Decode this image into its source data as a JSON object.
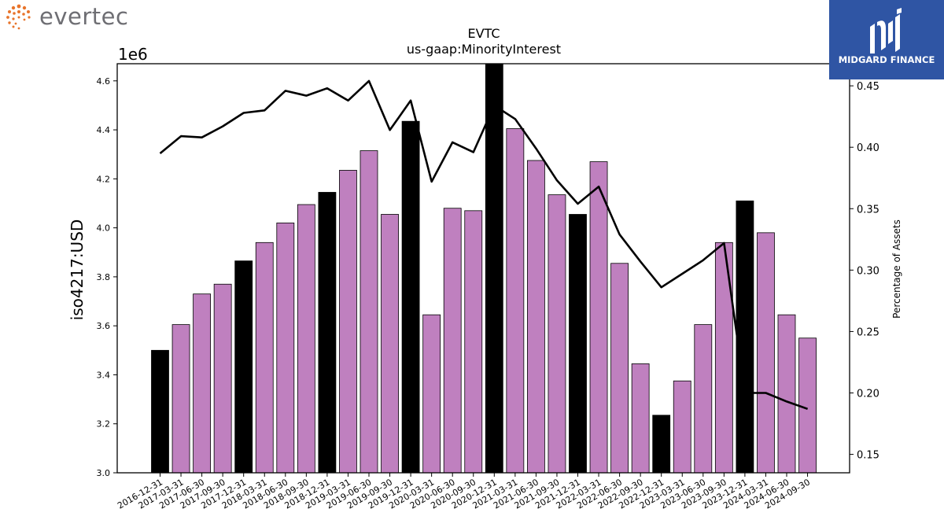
{
  "logos": {
    "left_text": "evertec",
    "right_text": "MIDGARD FINANCE",
    "accent_orange": "#e8742b",
    "brand_blue": "#2f55a4"
  },
  "chart_data": {
    "type": "bar",
    "title": "EVTC",
    "subtitle": "us-gaap:MinorityInterest",
    "ylabel": "iso4217:USD",
    "y_offset_label": "1e6",
    "y2label": "Percentage of Assets",
    "ylim": [
      3.0,
      4.67
    ],
    "y2lim": [
      0.135,
      0.468
    ],
    "grid": false,
    "colors": {
      "quarterly": "#bf80bf",
      "annual": "#000000",
      "line": "#000000"
    },
    "yticks": [
      "3.0",
      "3.2",
      "3.4",
      "3.6",
      "3.8",
      "4.0",
      "4.2",
      "4.4",
      "4.6"
    ],
    "y2ticks": [
      "0.15",
      "0.20",
      "0.25",
      "0.30",
      "0.35",
      "0.40",
      "0.45"
    ],
    "categories": [
      "2016-12-31",
      "2017-03-31",
      "2017-06-30",
      "2017-09-30",
      "2017-12-31",
      "2018-03-31",
      "2018-06-30",
      "2018-09-30",
      "2018-12-31",
      "2019-03-31",
      "2019-06-30",
      "2019-09-30",
      "2019-12-31",
      "2020-03-31",
      "2020-06-30",
      "2020-09-30",
      "2020-12-31",
      "2021-03-31",
      "2021-06-30",
      "2021-09-30",
      "2021-12-31",
      "2022-03-31",
      "2022-06-30",
      "2022-09-30",
      "2022-12-31",
      "2023-03-31",
      "2023-06-30",
      "2023-09-30",
      "2023-12-31",
      "2024-03-31",
      "2024-06-30",
      "2024-09-30"
    ],
    "values": [
      3.5,
      3.605,
      3.73,
      3.77,
      3.865,
      3.94,
      4.02,
      4.095,
      4.145,
      4.235,
      4.315,
      4.055,
      4.435,
      3.645,
      4.08,
      4.07,
      4.675,
      4.405,
      4.275,
      4.135,
      4.055,
      4.27,
      3.855,
      3.445,
      3.235,
      3.375,
      3.605,
      3.94,
      4.11,
      3.98,
      3.645,
      3.55
    ],
    "annual": [
      true,
      false,
      false,
      false,
      true,
      false,
      false,
      false,
      true,
      false,
      false,
      false,
      true,
      false,
      false,
      false,
      true,
      false,
      false,
      false,
      true,
      false,
      false,
      false,
      true,
      false,
      false,
      false,
      true,
      false,
      false,
      false
    ],
    "percentage_of_assets": [
      0.395,
      0.409,
      0.408,
      0.417,
      0.428,
      0.43,
      0.446,
      0.442,
      0.448,
      0.438,
      0.454,
      0.414,
      0.438,
      0.372,
      0.404,
      0.396,
      0.434,
      0.423,
      0.399,
      0.373,
      0.354,
      0.368,
      0.329,
      0.307,
      0.286,
      0.297,
      0.308,
      0.322,
      0.2,
      0.2,
      0.193,
      0.187
    ]
  }
}
